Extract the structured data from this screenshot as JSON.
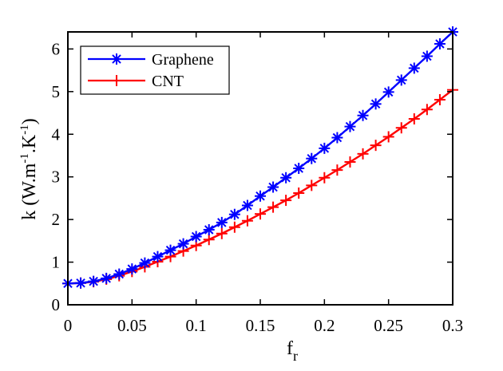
{
  "chart_data": {
    "type": "line",
    "title": "",
    "xlabel": {
      "main": "f",
      "sub": "r"
    },
    "ylabel": {
      "prefix": "k (W.m",
      "sup1": "-1",
      "mid": ".K",
      "sup2": "-1",
      "suffix": ")"
    },
    "xlim": [
      0,
      0.3
    ],
    "ylim": [
      0,
      6.4
    ],
    "xticks": [
      0,
      0.05,
      0.1,
      0.15,
      0.2,
      0.25,
      0.3
    ],
    "xtick_labels": [
      "0",
      "0.05",
      "0.1",
      "0.15",
      "0.2",
      "0.25",
      "0.3"
    ],
    "yticks": [
      0,
      1,
      2,
      3,
      4,
      5,
      6
    ],
    "ytick_labels": [
      "0",
      "1",
      "2",
      "3",
      "4",
      "5",
      "6"
    ],
    "legend_position": "top-left",
    "x": [
      0,
      0.01,
      0.02,
      0.03,
      0.04,
      0.05,
      0.06,
      0.07,
      0.08,
      0.09,
      0.1,
      0.11,
      0.12,
      0.13,
      0.14,
      0.15,
      0.16,
      0.17,
      0.18,
      0.19,
      0.2,
      0.21,
      0.22,
      0.23,
      0.24,
      0.25,
      0.26,
      0.27,
      0.28,
      0.29,
      0.3
    ],
    "series": [
      {
        "name": "Graphene",
        "color": "#0000ff",
        "marker": "asterisk",
        "values": [
          0.5,
          0.51,
          0.55,
          0.62,
          0.72,
          0.84,
          0.98,
          1.13,
          1.28,
          1.43,
          1.6,
          1.76,
          1.93,
          2.12,
          2.33,
          2.55,
          2.76,
          2.98,
          3.2,
          3.43,
          3.67,
          3.92,
          4.18,
          4.44,
          4.71,
          4.99,
          5.27,
          5.55,
          5.83,
          6.12,
          6.4
        ]
      },
      {
        "name": "CNT",
        "color": "#ff0000",
        "marker": "plus",
        "values": [
          0.5,
          0.51,
          0.54,
          0.6,
          0.68,
          0.78,
          0.89,
          1.01,
          1.13,
          1.26,
          1.39,
          1.53,
          1.67,
          1.82,
          1.97,
          2.13,
          2.29,
          2.45,
          2.62,
          2.8,
          2.98,
          3.16,
          3.35,
          3.54,
          3.74,
          3.94,
          4.15,
          4.36,
          4.58,
          4.81,
          5.04
        ]
      }
    ]
  }
}
